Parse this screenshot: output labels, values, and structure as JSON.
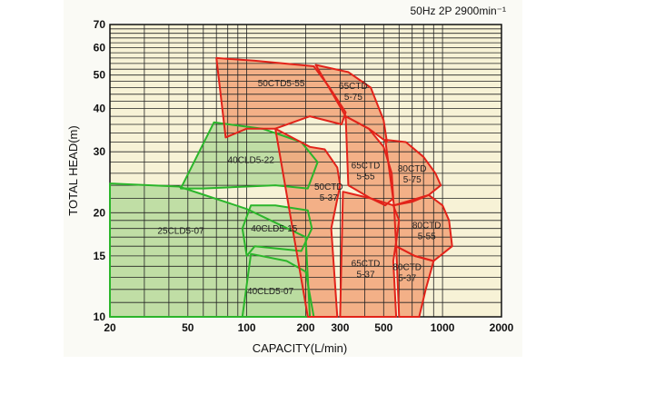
{
  "chart_data": {
    "type": "area",
    "subtitle": "50Hz 2P 2900min⁻¹",
    "xlabel": "CAPACITY(L/min)",
    "ylabel": "TOTAL HEAD(m)",
    "x_scale": "log",
    "y_scale": "log",
    "xlim": [
      20,
      2000
    ],
    "ylim": [
      10,
      70
    ],
    "x_ticks": [
      20,
      50,
      100,
      200,
      300,
      500,
      1000,
      2000
    ],
    "x_tick_labels": [
      "20",
      "50",
      "100",
      "200",
      "300",
      "500",
      "1000",
      "2000"
    ],
    "y_ticks": [
      10,
      15,
      20,
      30,
      40,
      50,
      60,
      70
    ],
    "y_tick_labels": [
      "10",
      "15",
      "20",
      "30",
      "40",
      "50",
      "60",
      "70"
    ],
    "grid": true,
    "colors": {
      "plot_background": "#f7f2d6",
      "grid": "#222222",
      "cld_fill": "#b9dca0",
      "cld_line": "#2bb52b",
      "ctd_fill": "#f2a87e",
      "ctd_line": "#e2231a"
    },
    "series": [
      {
        "name": "25CLD5-07",
        "group": "cld",
        "label_at": [
          46,
          17.8
        ],
        "points": [
          [
            20,
            24.3
          ],
          [
            45,
            23.8
          ],
          [
            100,
            20.5
          ],
          [
            200,
            17.0
          ],
          [
            210,
            10
          ],
          [
            20,
            10
          ]
        ]
      },
      {
        "name": "40CLD5-22",
        "group": "cld",
        "label_at": [
          105,
          28.5
        ],
        "points": [
          [
            46,
            23.5
          ],
          [
            68,
            36.5
          ],
          [
            120,
            35.0
          ],
          [
            190,
            32.0
          ],
          [
            230,
            28.0
          ],
          [
            205,
            23.5
          ],
          [
            140,
            24.0
          ],
          [
            60,
            23.5
          ]
        ]
      },
      {
        "name": "40CLD5-15",
        "group": "cld",
        "label_at": [
          138,
          18.1
        ],
        "points": [
          [
            105,
            21.0
          ],
          [
            140,
            21.0
          ],
          [
            205,
            20.3
          ],
          [
            215,
            18.0
          ],
          [
            190,
            15.5
          ],
          [
            110,
            16.0
          ],
          [
            100,
            15.0
          ],
          [
            95,
            18.0
          ]
        ]
      },
      {
        "name": "40CLD5-07",
        "group": "cld",
        "label_at": [
          132,
          11.9
        ],
        "points": [
          [
            105,
            15.2
          ],
          [
            160,
            14.5
          ],
          [
            200,
            13.5
          ],
          [
            220,
            10
          ],
          [
            95,
            10
          ]
        ]
      },
      {
        "name": "50CTD5-55",
        "group": "ctd",
        "label_at": [
          150,
          47.5
        ],
        "points": [
          [
            70,
            56.0
          ],
          [
            110,
            55.0
          ],
          [
            220,
            53.0
          ],
          [
            265,
            46.0
          ],
          [
            320,
            39.0
          ],
          [
            305,
            36.0
          ],
          [
            210,
            38.0
          ],
          [
            140,
            35.0
          ],
          [
            100,
            35.0
          ],
          [
            78,
            33.0
          ]
        ]
      },
      {
        "name": "65CTD 5-75",
        "group": "ctd",
        "lines": [
          "65CTD",
          "5-75"
        ],
        "label_at": [
          350,
          45.0
        ],
        "points": [
          [
            225,
            53.5
          ],
          [
            330,
            51.0
          ],
          [
            430,
            46.0
          ],
          [
            500,
            37.0
          ],
          [
            520,
            32.0
          ],
          [
            420,
            35.0
          ],
          [
            320,
            38.0
          ]
        ]
      },
      {
        "name": "50CTD 5-37",
        "group": "ctd",
        "lines": [
          "50CTD",
          "5-37"
        ],
        "label_at": [
          262,
          23.0
        ],
        "points": [
          [
            140,
            35.0
          ],
          [
            210,
            31.0
          ],
          [
            250,
            30.5
          ],
          [
            290,
            27.0
          ],
          [
            300,
            24.0
          ],
          [
            270,
            18.0
          ],
          [
            290,
            10
          ],
          [
            205,
            10
          ]
        ]
      },
      {
        "name": "65CTD 5-55",
        "group": "ctd",
        "lines": [
          "65CTD",
          "5-55"
        ],
        "label_at": [
          405,
          26.5
        ],
        "points": [
          [
            320,
            38.0
          ],
          [
            420,
            35.0
          ],
          [
            500,
            31.0
          ],
          [
            550,
            26.0
          ],
          [
            560,
            22.0
          ],
          [
            510,
            21.0
          ],
          [
            430,
            22.0
          ],
          [
            330,
            24.0
          ]
        ]
      },
      {
        "name": "80CTD 5-75",
        "group": "ctd",
        "lines": [
          "80CTD",
          "5-75"
        ],
        "label_at": [
          700,
          26.0
        ],
        "points": [
          [
            510,
            32.5
          ],
          [
            650,
            32.0
          ],
          [
            800,
            29.0
          ],
          [
            920,
            26.0
          ],
          [
            980,
            24.0
          ],
          [
            850,
            22.5
          ],
          [
            700,
            21.5
          ],
          [
            565,
            21.0
          ]
        ]
      },
      {
        "name": "65CTD 5-37",
        "group": "ctd",
        "lines": [
          "65CTD",
          "5-37"
        ],
        "label_at": [
          405,
          13.8
        ],
        "points": [
          [
            310,
            23.0
          ],
          [
            430,
            22.0
          ],
          [
            560,
            21.0
          ],
          [
            600,
            19.0
          ],
          [
            580,
            16.5
          ],
          [
            560,
            14.5
          ],
          [
            580,
            10
          ],
          [
            300,
            10
          ]
        ]
      },
      {
        "name": "80CTD 5-55",
        "group": "ctd",
        "lines": [
          "80CTD",
          "5-55"
        ],
        "label_at": [
          830,
          17.8
        ],
        "points": [
          [
            565,
            21.0
          ],
          [
            850,
            22.5
          ],
          [
            1000,
            21.0
          ],
          [
            1080,
            19.0
          ],
          [
            1120,
            16.0
          ],
          [
            900,
            14.5
          ],
          [
            720,
            15.0
          ],
          [
            580,
            16.0
          ]
        ]
      },
      {
        "name": "80CTD 5-37",
        "group": "ctd",
        "lines": [
          "80CTD",
          "5-37"
        ],
        "label_at": [
          660,
          13.5
        ],
        "points": [
          [
            580,
            16.0
          ],
          [
            720,
            15.0
          ],
          [
            900,
            14.5
          ],
          [
            820,
            12.0
          ],
          [
            760,
            10
          ],
          [
            600,
            10
          ]
        ]
      }
    ]
  }
}
